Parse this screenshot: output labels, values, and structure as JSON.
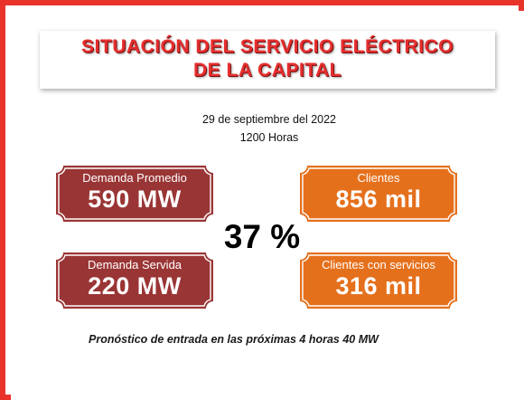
{
  "title": {
    "line1": "SITUACIÓN DEL SERVICIO ELÉCTRICO",
    "line2": "DE LA CAPITAL"
  },
  "date": "29 de septiembre del 2022",
  "time": "1200 Horas",
  "cards": [
    {
      "label": "Demanda Promedio",
      "value": "590 MW"
    },
    {
      "label": "Clientes",
      "value": "856 mil"
    },
    {
      "label": "Demanda Servida",
      "value": "220 MW"
    },
    {
      "label": "Clientes con servicios",
      "value": "316 mil"
    }
  ],
  "percent": "37 %",
  "forecast": "Pronóstico de entrada en las próximas 4 horas 40 MW",
  "colors": {
    "frame": "#e8332a",
    "title": "#e62e2e",
    "demand_card": "#9a3535",
    "client_card": "#e5701c"
  }
}
